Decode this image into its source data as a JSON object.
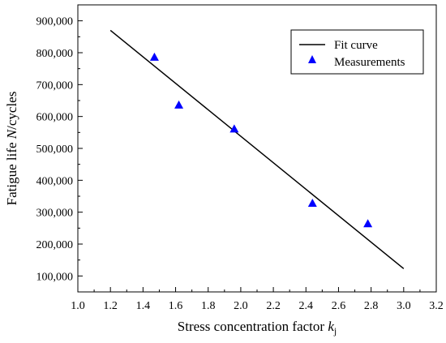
{
  "chart_data": {
    "type": "scatter",
    "xlabel": "Stress concentration factor k_j",
    "xlabel_main": "Stress concentration factor ",
    "xlabel_var": "k",
    "xlabel_sub": "j",
    "ylabel": "Fatigue life N/cycles",
    "ylabel_pre": "Fatigue life ",
    "ylabel_var": "N",
    "ylabel_post": "/cycles",
    "xlim": [
      1.0,
      3.2
    ],
    "ylim": [
      50000,
      950000
    ],
    "x_ticks": [
      "1.0",
      "1.2",
      "1.4",
      "1.6",
      "1.8",
      "2.0",
      "2.2",
      "2.4",
      "2.6",
      "2.8",
      "3.0",
      "3.2"
    ],
    "y_ticks": [
      "100,000",
      "200,000",
      "300,000",
      "400,000",
      "500,000",
      "600,000",
      "700,000",
      "800,000",
      "900,000"
    ],
    "grid": false,
    "legend_position": "top-right",
    "series": [
      {
        "name": "Fit curve",
        "kind": "line",
        "color": "#000000",
        "x": [
          1.2,
          3.0
        ],
        "y": [
          870000,
          123000
        ]
      },
      {
        "name": "Measurements",
        "kind": "scatter",
        "marker": "triangle",
        "color": "#0000ff",
        "x": [
          1.47,
          1.62,
          1.96,
          2.44,
          2.78
        ],
        "y": [
          785000,
          635000,
          560000,
          327000,
          263000
        ]
      }
    ]
  }
}
